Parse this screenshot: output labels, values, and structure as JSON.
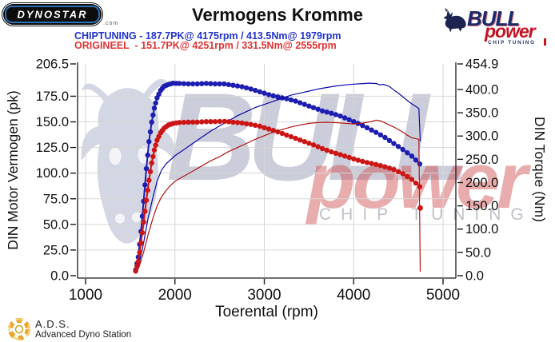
{
  "header": {
    "dynostar_logo_text": "DYNOSTAR",
    "dynostar_domain": ".com",
    "title": "Vermogens Kromme",
    "chiptuning_line": "CHIPTUNING - 187.7PK@ 4175rpm / 413.5Nm@ 1979rpm",
    "origineel_line": "ORIGINEEL  - 151.7PK@ 4251rpm / 331.5Nm@ 2555rpm",
    "bull_logo": {
      "bull": "BULL",
      "power": "power",
      "chip_tuning": "CHIP TUNING"
    }
  },
  "watermark": {
    "bull": "BULL",
    "power": "power",
    "chip_tuning": "CHIP TUNING"
  },
  "footer": {
    "ads_abbr": "A.D.S.",
    "ads_name": "Advanced Dyno Station"
  },
  "colors": {
    "grid": "#d6d6d6",
    "axis": "#1a1a1a",
    "tick_text": "#111111",
    "chip_torque": "#1d1db2",
    "chip_power": "#0a0aa6",
    "orig_torque": "#cc1515",
    "orig_power": "#b01515"
  },
  "chart_data": {
    "type": "line",
    "title": "Vermogens Kromme",
    "xlabel": "Toerental (rpm)",
    "x_ticks": [
      1000,
      2000,
      3000,
      4000,
      5000
    ],
    "x_range": [
      910,
      5145
    ],
    "left_axis": {
      "label": "DIN Motor Vermogen (pk)",
      "unit": "pk",
      "max": 206.5,
      "ticks": [
        206.5,
        175,
        150,
        125,
        100,
        75,
        50,
        25,
        0
      ]
    },
    "right_axis": {
      "label": "DIN Torque (Nm)",
      "unit": "Nm",
      "max": 454.9,
      "ticks": [
        454.9,
        400,
        350,
        300,
        250,
        200,
        150,
        100,
        50,
        0
      ]
    },
    "h_gridlines_pk": [
      175,
      150,
      125,
      100,
      75,
      50,
      25
    ],
    "grid_on": true,
    "legend": "none",
    "peaks": {
      "chiptuning": {
        "power_pk": 187.7,
        "power_rpm": 4175,
        "torque_nm": 413.5,
        "torque_rpm": 1979
      },
      "origineel": {
        "power_pk": 151.7,
        "power_rpm": 4251,
        "torque_nm": 331.5,
        "torque_rpm": 2555
      }
    },
    "series": [
      {
        "name": "chiptuning-torque",
        "axis": "right",
        "unit": "Nm",
        "colorKey": "chip_torque",
        "width": 2,
        "markers": true,
        "points": [
          [
            1560,
            12
          ],
          [
            1590,
            40
          ],
          [
            1620,
            95
          ],
          [
            1650,
            160
          ],
          [
            1680,
            230
          ],
          [
            1710,
            288
          ],
          [
            1740,
            330
          ],
          [
            1770,
            360
          ],
          [
            1800,
            382
          ],
          [
            1840,
            398
          ],
          [
            1880,
            407
          ],
          [
            1930,
            411
          ],
          [
            1979,
            413.5
          ],
          [
            2050,
            413
          ],
          [
            2150,
            412
          ],
          [
            2250,
            412
          ],
          [
            2350,
            413
          ],
          [
            2450,
            412
          ],
          [
            2550,
            412
          ],
          [
            2650,
            409
          ],
          [
            2750,
            406
          ],
          [
            2850,
            401
          ],
          [
            2950,
            395
          ],
          [
            3050,
            389
          ],
          [
            3150,
            384
          ],
          [
            3250,
            380
          ],
          [
            3350,
            375
          ],
          [
            3450,
            368
          ],
          [
            3550,
            361
          ],
          [
            3650,
            354
          ],
          [
            3750,
            349
          ],
          [
            3850,
            343
          ],
          [
            3950,
            335
          ],
          [
            4050,
            327
          ],
          [
            4150,
            318
          ],
          [
            4250,
            308
          ],
          [
            4350,
            297
          ],
          [
            4450,
            284
          ],
          [
            4550,
            271
          ],
          [
            4650,
            257
          ],
          [
            4740,
            240
          ]
        ]
      },
      {
        "name": "chiptuning-power",
        "axis": "left",
        "unit": "pk",
        "colorKey": "chip_power",
        "width": 1.2,
        "markers": false,
        "points": [
          [
            1560,
            3
          ],
          [
            1600,
            12
          ],
          [
            1650,
            32
          ],
          [
            1700,
            56
          ],
          [
            1750,
            75
          ],
          [
            1800,
            92
          ],
          [
            1850,
            103
          ],
          [
            1900,
            109
          ],
          [
            1950,
            113
          ],
          [
            2000,
            117
          ],
          [
            2100,
            123
          ],
          [
            2200,
            129
          ],
          [
            2300,
            135
          ],
          [
            2400,
            141
          ],
          [
            2500,
            146
          ],
          [
            2600,
            151
          ],
          [
            2700,
            156
          ],
          [
            2800,
            160
          ],
          [
            2900,
            164
          ],
          [
            3000,
            167
          ],
          [
            3100,
            170
          ],
          [
            3200,
            173
          ],
          [
            3300,
            176
          ],
          [
            3400,
            178
          ],
          [
            3500,
            180
          ],
          [
            3600,
            182
          ],
          [
            3700,
            183.5
          ],
          [
            3800,
            185
          ],
          [
            3900,
            186
          ],
          [
            4000,
            186.8
          ],
          [
            4100,
            187.3
          ],
          [
            4175,
            187.7
          ],
          [
            4250,
            187.4
          ],
          [
            4300,
            186
          ],
          [
            4330,
            186.6
          ],
          [
            4400,
            184.5
          ],
          [
            4450,
            181
          ],
          [
            4500,
            178
          ],
          [
            4550,
            174.5
          ],
          [
            4600,
            171
          ],
          [
            4650,
            167.5
          ],
          [
            4730,
            163
          ],
          [
            4745,
            131
          ]
        ]
      },
      {
        "name": "origineel-torque",
        "axis": "right",
        "unit": "Nm",
        "colorKey": "orig_torque",
        "width": 2,
        "markers": true,
        "points": [
          [
            1560,
            10
          ],
          [
            1590,
            30
          ],
          [
            1620,
            70
          ],
          [
            1650,
            115
          ],
          [
            1680,
            162
          ],
          [
            1710,
            205
          ],
          [
            1740,
            242
          ],
          [
            1770,
            270
          ],
          [
            1800,
            291
          ],
          [
            1840,
            307
          ],
          [
            1880,
            317
          ],
          [
            1930,
            324
          ],
          [
            1980,
            327
          ],
          [
            2050,
            329
          ],
          [
            2150,
            330
          ],
          [
            2250,
            330
          ],
          [
            2350,
            331
          ],
          [
            2450,
            331
          ],
          [
            2555,
            331.5
          ],
          [
            2650,
            330
          ],
          [
            2750,
            328
          ],
          [
            2850,
            325
          ],
          [
            2950,
            321
          ],
          [
            3050,
            315
          ],
          [
            3150,
            309
          ],
          [
            3250,
            302
          ],
          [
            3350,
            295
          ],
          [
            3450,
            288
          ],
          [
            3550,
            281
          ],
          [
            3650,
            273
          ],
          [
            3750,
            266
          ],
          [
            3850,
            260
          ],
          [
            3950,
            254
          ],
          [
            4050,
            248
          ],
          [
            4150,
            243
          ],
          [
            4250,
            239
          ],
          [
            4350,
            234
          ],
          [
            4450,
            228
          ],
          [
            4550,
            219
          ],
          [
            4650,
            207
          ],
          [
            4740,
            191
          ]
        ]
      },
      {
        "name": "origineel-power",
        "axis": "left",
        "unit": "pk",
        "colorKey": "orig_power",
        "width": 1.2,
        "markers": false,
        "points": [
          [
            1560,
            2
          ],
          [
            1600,
            9
          ],
          [
            1650,
            23
          ],
          [
            1700,
            40
          ],
          [
            1750,
            55
          ],
          [
            1800,
            68
          ],
          [
            1850,
            77
          ],
          [
            1900,
            83
          ],
          [
            1950,
            88
          ],
          [
            2000,
            92
          ],
          [
            2100,
            97
          ],
          [
            2200,
            102
          ],
          [
            2300,
            107
          ],
          [
            2400,
            112
          ],
          [
            2500,
            116
          ],
          [
            2600,
            121
          ],
          [
            2700,
            125
          ],
          [
            2800,
            129
          ],
          [
            2900,
            133
          ],
          [
            3000,
            136.5
          ],
          [
            3100,
            140
          ],
          [
            3200,
            142.5
          ],
          [
            3300,
            145
          ],
          [
            3400,
            147
          ],
          [
            3500,
            148.5
          ],
          [
            3600,
            149.3
          ],
          [
            3700,
            149.6
          ],
          [
            3800,
            149.2
          ],
          [
            3900,
            148.6
          ],
          [
            4000,
            148
          ],
          [
            4100,
            148.8
          ],
          [
            4200,
            150.3
          ],
          [
            4251,
            151.7
          ],
          [
            4300,
            151
          ],
          [
            4350,
            149
          ],
          [
            4400,
            147
          ],
          [
            4450,
            145
          ],
          [
            4500,
            142.5
          ],
          [
            4550,
            140
          ],
          [
            4600,
            137
          ],
          [
            4650,
            134.5
          ],
          [
            4730,
            133
          ],
          [
            4745,
            4
          ]
        ]
      }
    ],
    "end_marker": {
      "rpm": 4745,
      "pk": 66,
      "colorKey": "orig_torque"
    }
  }
}
